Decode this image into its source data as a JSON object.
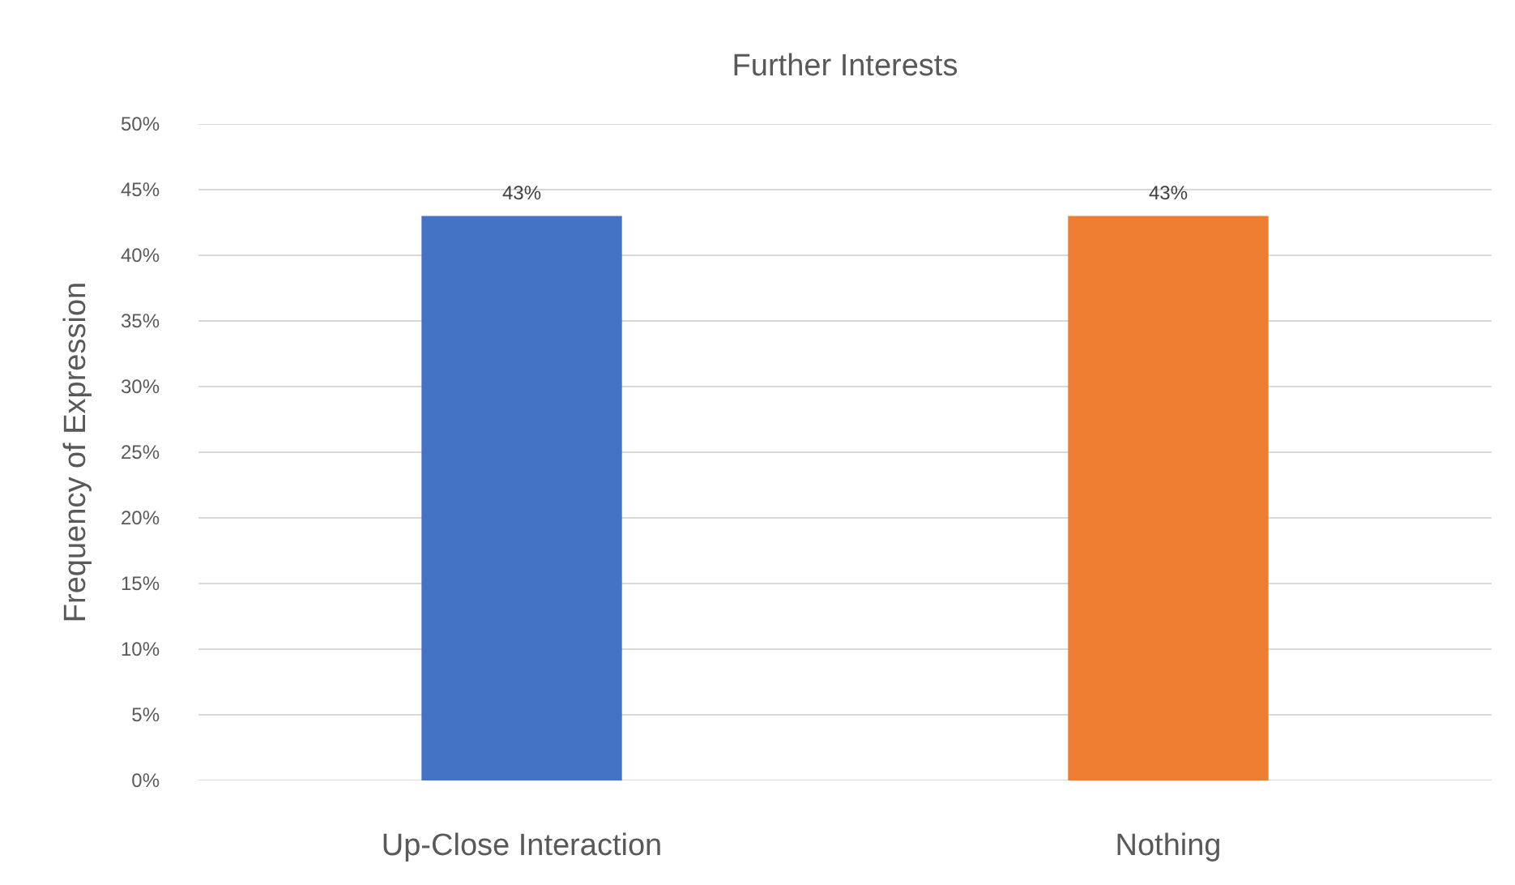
{
  "chart_data": {
    "type": "bar",
    "title": "Further Interests",
    "ylabel": "Frequency of Expression",
    "categories": [
      "Up-Close Interaction",
      "Nothing"
    ],
    "values": [
      43,
      43
    ],
    "colors": [
      "#4472c4",
      "#ed7d31"
    ],
    "value_labels": [
      "43%",
      "43%"
    ],
    "ylim": [
      0,
      50
    ],
    "yticks": [
      {
        "value": 0,
        "label": "0%"
      },
      {
        "value": 5,
        "label": "5%"
      },
      {
        "value": 10,
        "label": "10%"
      },
      {
        "value": 15,
        "label": "15%"
      },
      {
        "value": 20,
        "label": "20%"
      },
      {
        "value": 25,
        "label": "25%"
      },
      {
        "value": 30,
        "label": "30%"
      },
      {
        "value": 35,
        "label": "35%"
      },
      {
        "value": 40,
        "label": "40%"
      },
      {
        "value": 45,
        "label": "45%"
      },
      {
        "value": 50,
        "label": "50%"
      }
    ],
    "grid": "y"
  }
}
